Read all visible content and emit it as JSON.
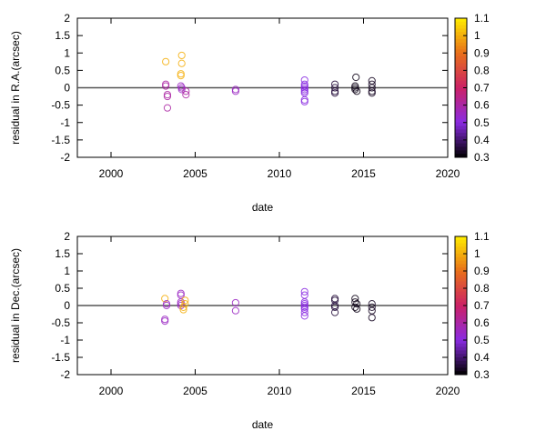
{
  "chart_data": [
    {
      "type": "scatter",
      "xlabel": "date",
      "ylabel": "residual in R.A.(arcsec)",
      "xlim": [
        1998,
        2020
      ],
      "ylim": [
        -2,
        2
      ],
      "xticks": [
        "2000",
        "2005",
        "2010",
        "2015",
        "2020"
      ],
      "yticks": [
        "2",
        "1.5",
        "1",
        "0.5",
        "0",
        "-0.5",
        "-1",
        "-1.5",
        "-2"
      ],
      "zero_line": true,
      "marker": "open-circle",
      "colorbar": {
        "range": [
          0.3,
          1.1
        ],
        "ticks": [
          "1.1",
          "1",
          "0.9",
          "0.8",
          "0.7",
          "0.6",
          "0.5",
          "0.4",
          "0.3"
        ],
        "palette": [
          "#000000",
          "#8a2be2",
          "#cc2266",
          "#e8701a",
          "#ffee00"
        ]
      },
      "points": [
        [
          2003.25,
          0.75,
          1.0
        ],
        [
          2003.25,
          0.1,
          0.6
        ],
        [
          2003.25,
          0.05,
          0.6
        ],
        [
          2003.35,
          -0.2,
          0.6
        ],
        [
          2003.35,
          -0.25,
          0.6
        ],
        [
          2003.35,
          -0.58,
          0.6
        ],
        [
          2004.2,
          0.93,
          1.0
        ],
        [
          2004.2,
          0.7,
          1.0
        ],
        [
          2004.15,
          0.4,
          1.0
        ],
        [
          2004.15,
          0.35,
          1.0
        ],
        [
          2004.15,
          0.05,
          0.55
        ],
        [
          2004.2,
          0.0,
          0.55
        ],
        [
          2004.2,
          -0.05,
          0.55
        ],
        [
          2004.45,
          -0.1,
          0.6
        ],
        [
          2004.45,
          -0.2,
          0.6
        ],
        [
          2007.4,
          -0.05,
          0.55
        ],
        [
          2007.4,
          -0.1,
          0.55
        ],
        [
          2011.5,
          0.22,
          0.5
        ],
        [
          2011.5,
          0.1,
          0.5
        ],
        [
          2011.5,
          0.05,
          0.5
        ],
        [
          2011.5,
          0.0,
          0.5
        ],
        [
          2011.5,
          -0.05,
          0.5
        ],
        [
          2011.5,
          -0.1,
          0.5
        ],
        [
          2011.5,
          -0.15,
          0.5
        ],
        [
          2011.5,
          -0.35,
          0.5
        ],
        [
          2011.5,
          -0.4,
          0.5
        ],
        [
          2013.3,
          0.1,
          0.35
        ],
        [
          2013.3,
          0.0,
          0.35
        ],
        [
          2013.3,
          -0.1,
          0.35
        ],
        [
          2013.3,
          -0.15,
          0.35
        ],
        [
          2014.55,
          0.3,
          0.32
        ],
        [
          2014.5,
          0.05,
          0.32
        ],
        [
          2014.5,
          0.0,
          0.32
        ],
        [
          2014.5,
          -0.05,
          0.32
        ],
        [
          2014.6,
          -0.1,
          0.32
        ],
        [
          2015.5,
          0.2,
          0.33
        ],
        [
          2015.5,
          0.1,
          0.33
        ],
        [
          2015.5,
          0.0,
          0.33
        ],
        [
          2015.5,
          -0.1,
          0.33
        ],
        [
          2015.5,
          -0.15,
          0.33
        ]
      ]
    },
    {
      "type": "scatter",
      "xlabel": "date",
      "ylabel": "residual in Dec.(arcsec)",
      "xlim": [
        1998,
        2020
      ],
      "ylim": [
        -2,
        2
      ],
      "xticks": [
        "2000",
        "2005",
        "2010",
        "2015",
        "2020"
      ],
      "yticks": [
        "2",
        "1.5",
        "1",
        "0.5",
        "0",
        "-0.5",
        "-1",
        "-1.5",
        "-2"
      ],
      "zero_line": true,
      "marker": "open-circle",
      "colorbar": {
        "range": [
          0.3,
          1.1
        ],
        "ticks": [
          "1.1",
          "1",
          "0.9",
          "0.8",
          "0.7",
          "0.6",
          "0.5",
          "0.4",
          "0.3"
        ],
        "palette": [
          "#000000",
          "#8a2be2",
          "#cc2266",
          "#e8701a",
          "#ffee00"
        ]
      },
      "points": [
        [
          2003.2,
          0.2,
          1.0
        ],
        [
          2003.3,
          0.05,
          0.55
        ],
        [
          2003.3,
          0.0,
          0.55
        ],
        [
          2003.2,
          -0.4,
          0.55
        ],
        [
          2003.2,
          -0.45,
          0.55
        ],
        [
          2004.15,
          0.35,
          0.55
        ],
        [
          2004.15,
          0.3,
          0.55
        ],
        [
          2004.15,
          0.1,
          0.55
        ],
        [
          2004.15,
          0.05,
          0.55
        ],
        [
          2004.15,
          0.0,
          0.55
        ],
        [
          2004.4,
          0.15,
          1.0
        ],
        [
          2004.4,
          0.05,
          1.0
        ],
        [
          2004.3,
          -0.05,
          1.0
        ],
        [
          2004.3,
          -0.12,
          1.0
        ],
        [
          2007.4,
          0.08,
          0.55
        ],
        [
          2007.4,
          -0.15,
          0.55
        ],
        [
          2011.5,
          0.4,
          0.5
        ],
        [
          2011.5,
          0.3,
          0.5
        ],
        [
          2011.5,
          0.1,
          0.5
        ],
        [
          2011.5,
          0.05,
          0.5
        ],
        [
          2011.5,
          0.0,
          0.5
        ],
        [
          2011.5,
          -0.05,
          0.5
        ],
        [
          2011.5,
          -0.1,
          0.5
        ],
        [
          2011.5,
          -0.2,
          0.5
        ],
        [
          2011.5,
          -0.3,
          0.5
        ],
        [
          2013.3,
          0.2,
          0.35
        ],
        [
          2013.3,
          0.15,
          0.35
        ],
        [
          2013.3,
          0.0,
          0.35
        ],
        [
          2013.3,
          -0.05,
          0.35
        ],
        [
          2013.3,
          -0.2,
          0.35
        ],
        [
          2014.5,
          0.2,
          0.32
        ],
        [
          2014.5,
          0.1,
          0.32
        ],
        [
          2014.6,
          0.05,
          0.32
        ],
        [
          2014.5,
          -0.05,
          0.32
        ],
        [
          2014.6,
          -0.1,
          0.32
        ],
        [
          2015.5,
          0.05,
          0.33
        ],
        [
          2015.5,
          -0.05,
          0.33
        ],
        [
          2015.5,
          -0.15,
          0.33
        ],
        [
          2015.5,
          -0.35,
          0.33
        ]
      ]
    }
  ]
}
